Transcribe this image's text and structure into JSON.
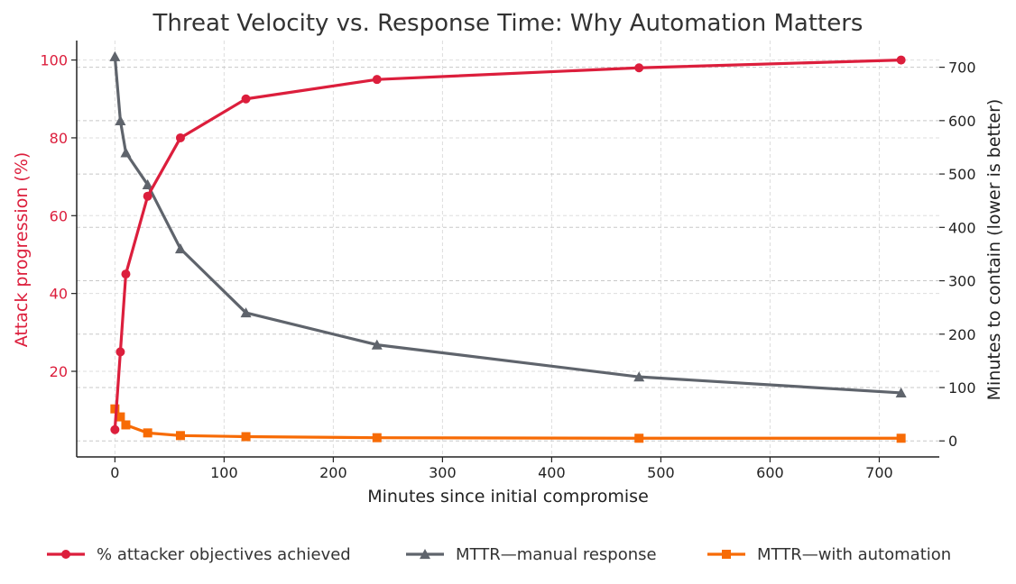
{
  "chart_data": {
    "type": "line",
    "title": "Threat Velocity vs. Response Time: Why Automation Matters",
    "xlabel": "Minutes since initial compromise",
    "ylabel_left": "Attack progression (%)",
    "ylabel_right": "Minutes to contain (lower is better)",
    "xlim": [
      -35,
      755
    ],
    "ylim_left": [
      -2,
      105
    ],
    "ylim_right": [
      -30,
      750
    ],
    "x_ticks": [
      0,
      100,
      200,
      300,
      400,
      500,
      600,
      700
    ],
    "y_left_ticks": [
      20,
      40,
      60,
      80,
      100
    ],
    "y_right_ticks": [
      0,
      100,
      200,
      300,
      400,
      500,
      600,
      700
    ],
    "grid": true,
    "legend_position": "bottom",
    "series": [
      {
        "name": "% attacker objectives achieved",
        "axis": "left",
        "marker": "circle",
        "color": "#dc1e3c",
        "x": [
          0,
          5,
          10,
          30,
          60,
          120,
          240,
          480,
          720
        ],
        "values": [
          5,
          25,
          45,
          65,
          80,
          90,
          95,
          98,
          100
        ]
      },
      {
        "name": "MTTR—manual response",
        "axis": "right",
        "marker": "triangle",
        "color": "#5f646c",
        "x": [
          0,
          5,
          10,
          30,
          60,
          120,
          240,
          480,
          720
        ],
        "values": [
          720,
          600,
          540,
          480,
          360,
          240,
          180,
          120,
          90
        ]
      },
      {
        "name": "MTTR—with automation",
        "axis": "right",
        "marker": "square",
        "color": "#f76b05",
        "x": [
          0,
          5,
          10,
          30,
          60,
          120,
          240,
          480,
          720
        ],
        "values": [
          60,
          45,
          30,
          15,
          10,
          8,
          6,
          5,
          5
        ]
      }
    ]
  },
  "colors": {
    "left_axis": "#dc1e3c",
    "text": "#333333",
    "axis": "#222222",
    "grid": "#dddddd"
  }
}
